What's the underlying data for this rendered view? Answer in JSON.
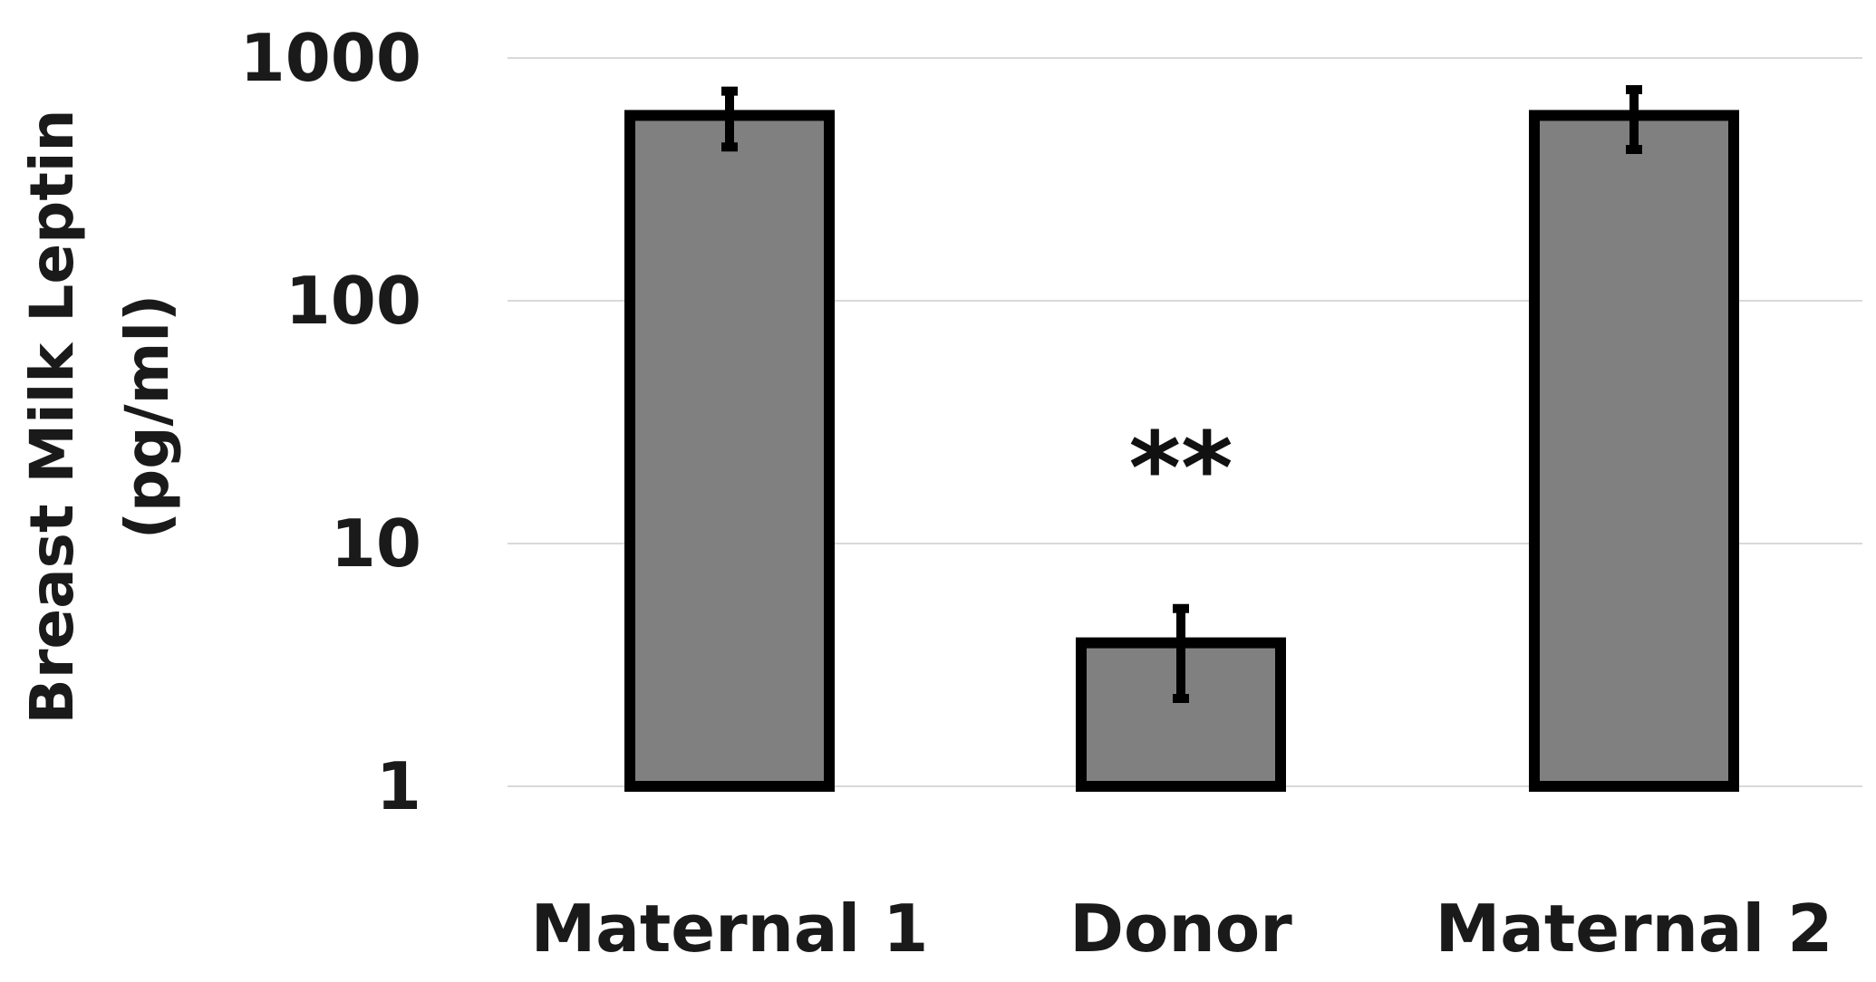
{
  "chart_data": {
    "type": "bar",
    "title": "",
    "xlabel": "",
    "ylabel": [
      "Breast Milk Leptin",
      "(pg/ml)"
    ],
    "yscale": "log",
    "ylim": [
      1,
      1000
    ],
    "yticks": [
      1,
      10,
      100,
      1000
    ],
    "ytick_labels": [
      "1",
      "10",
      "100",
      "1000"
    ],
    "grid": true,
    "categories": [
      "Maternal 1",
      "Donor",
      "Maternal 2"
    ],
    "values": [
      580,
      3.9,
      580
    ],
    "error_low": [
      430,
      2.3,
      420
    ],
    "error_high": [
      730,
      5.4,
      740
    ],
    "bar_color": "#808080",
    "annotations": [
      {
        "category": "Donor",
        "text": "**"
      }
    ]
  }
}
